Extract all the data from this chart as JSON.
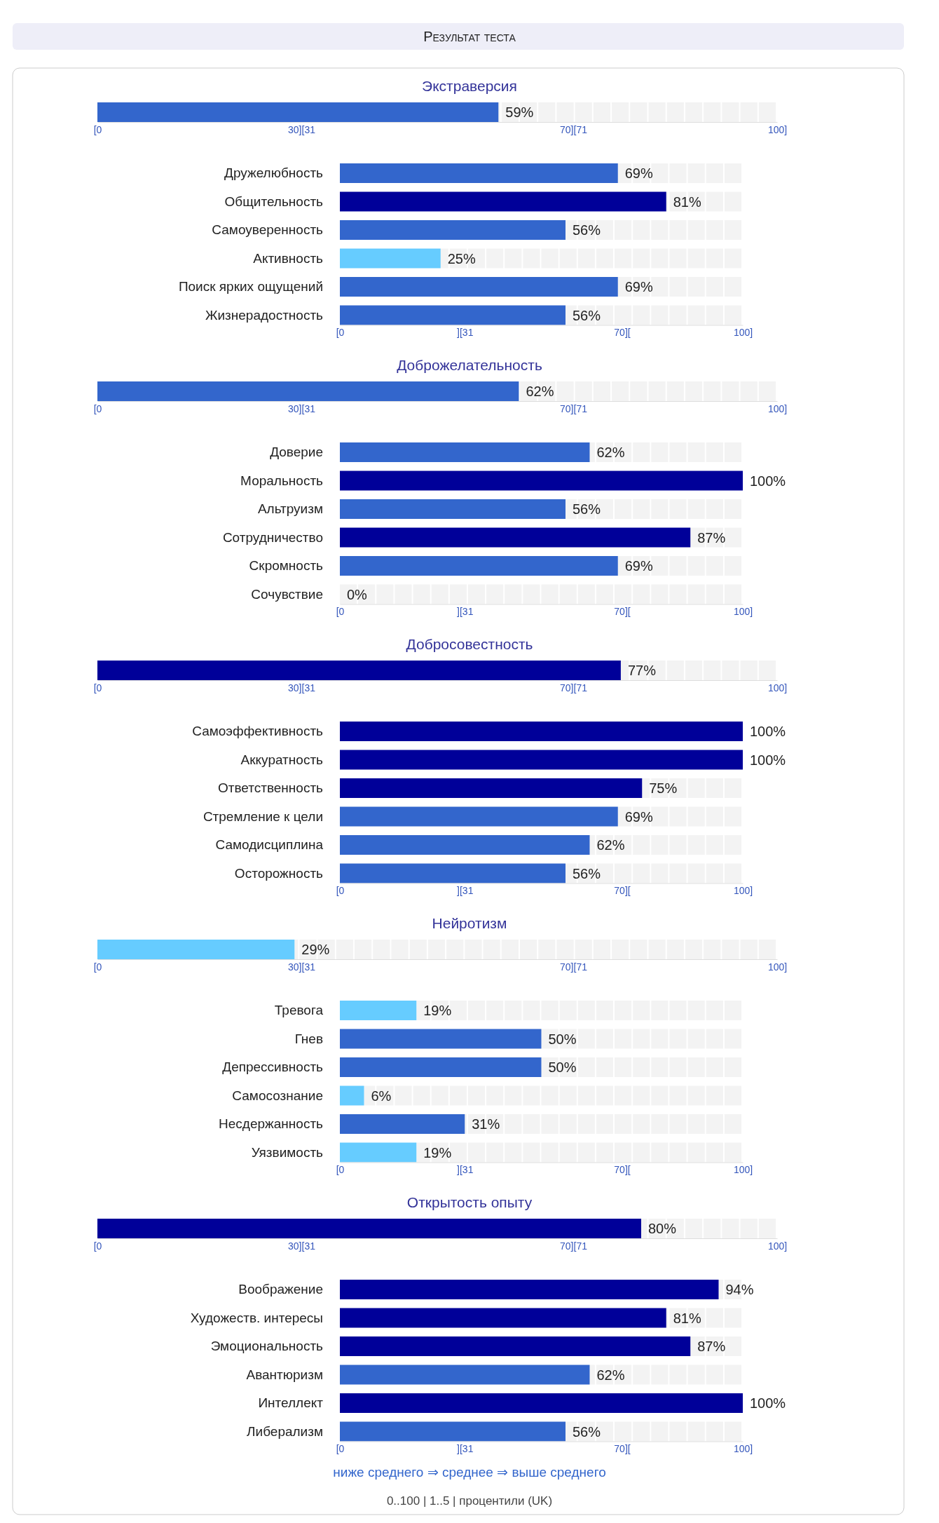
{
  "chart_data": [
    {
      "type": "other",
      "title": "Результат теста"
    },
    {
      "type": "bar",
      "orientation": "horizontal",
      "categories": [
        "Экстраверсия"
      ],
      "values": [
        59
      ],
      "colors": [
        "#3366cc"
      ],
      "value_labels": [
        "59%"
      ],
      "xlim": [
        0,
        100
      ],
      "xticks": [
        {
          "value": 0,
          "label": "[0"
        },
        {
          "value": 30,
          "label": "30][31"
        },
        {
          "value": 70,
          "label": "70][71"
        },
        {
          "value": 100,
          "label": "100]"
        }
      ]
    },
    {
      "type": "bar",
      "orientation": "horizontal",
      "categories": [
        "Дружелюбность",
        "Общительность",
        "Самоуверенность",
        "Активность",
        "Поиск ярких ощущений",
        "Жизнерадостность"
      ],
      "values": [
        69,
        81,
        56,
        25,
        69,
        56
      ],
      "colors": [
        "#3366cc",
        "#000099",
        "#3366cc",
        "#66ccff",
        "#3366cc",
        "#3366cc"
      ],
      "value_labels": [
        "69%",
        "81%",
        "56%",
        "25%",
        "69%",
        "56%"
      ],
      "xlim": [
        0,
        100
      ],
      "xticks": [
        {
          "value": 0,
          "label": "[0"
        },
        {
          "value": 31,
          "label": "][31"
        },
        {
          "value": 70,
          "label": "70]["
        },
        {
          "value": 100,
          "label": "100]"
        }
      ]
    },
    {
      "type": "bar",
      "orientation": "horizontal",
      "categories": [
        "Доброжелательность"
      ],
      "values": [
        62
      ],
      "colors": [
        "#3366cc"
      ],
      "value_labels": [
        "62%"
      ],
      "xlim": [
        0,
        100
      ],
      "xticks": [
        {
          "value": 0,
          "label": "[0"
        },
        {
          "value": 30,
          "label": "30][31"
        },
        {
          "value": 70,
          "label": "70][71"
        },
        {
          "value": 100,
          "label": "100]"
        }
      ]
    },
    {
      "type": "bar",
      "orientation": "horizontal",
      "categories": [
        "Доверие",
        "Моральность",
        "Альтруизм",
        "Сотрудничество",
        "Скромность",
        "Сочувствие"
      ],
      "values": [
        62,
        100,
        56,
        87,
        69,
        0
      ],
      "colors": [
        "#3366cc",
        "#000099",
        "#3366cc",
        "#000099",
        "#3366cc",
        "#66ccff"
      ],
      "value_labels": [
        "62%",
        "100%",
        "56%",
        "87%",
        "69%",
        "0%"
      ],
      "xlim": [
        0,
        100
      ],
      "xticks": [
        {
          "value": 0,
          "label": "[0"
        },
        {
          "value": 31,
          "label": "][31"
        },
        {
          "value": 70,
          "label": "70]["
        },
        {
          "value": 100,
          "label": "100]"
        }
      ]
    },
    {
      "type": "bar",
      "orientation": "horizontal",
      "categories": [
        "Добросовестность"
      ],
      "values": [
        77
      ],
      "colors": [
        "#000099"
      ],
      "value_labels": [
        "77%"
      ],
      "xlim": [
        0,
        100
      ],
      "xticks": [
        {
          "value": 0,
          "label": "[0"
        },
        {
          "value": 30,
          "label": "30][31"
        },
        {
          "value": 70,
          "label": "70][71"
        },
        {
          "value": 100,
          "label": "100]"
        }
      ]
    },
    {
      "type": "bar",
      "orientation": "horizontal",
      "categories": [
        "Самоэффективность",
        "Аккуратность",
        "Ответственность",
        "Стремление к цели",
        "Самодисциплина",
        "Осторожность"
      ],
      "values": [
        100,
        100,
        75,
        69,
        62,
        56
      ],
      "colors": [
        "#000099",
        "#000099",
        "#000099",
        "#3366cc",
        "#3366cc",
        "#3366cc"
      ],
      "value_labels": [
        "100%",
        "100%",
        "75%",
        "69%",
        "62%",
        "56%"
      ],
      "xlim": [
        0,
        100
      ],
      "xticks": [
        {
          "value": 0,
          "label": "[0"
        },
        {
          "value": 31,
          "label": "][31"
        },
        {
          "value": 70,
          "label": "70]["
        },
        {
          "value": 100,
          "label": "100]"
        }
      ]
    },
    {
      "type": "bar",
      "orientation": "horizontal",
      "categories": [
        "Нейротизм"
      ],
      "values": [
        29
      ],
      "colors": [
        "#66ccff"
      ],
      "value_labels": [
        "29%"
      ],
      "xlim": [
        0,
        100
      ],
      "xticks": [
        {
          "value": 0,
          "label": "[0"
        },
        {
          "value": 30,
          "label": "30][31"
        },
        {
          "value": 70,
          "label": "70][71"
        },
        {
          "value": 100,
          "label": "100]"
        }
      ]
    },
    {
      "type": "bar",
      "orientation": "horizontal",
      "categories": [
        "Тревога",
        "Гнев",
        "Депрессивность",
        "Самосознание",
        "Несдержанность",
        "Уязвимость"
      ],
      "values": [
        19,
        50,
        50,
        6,
        31,
        19
      ],
      "colors": [
        "#66ccff",
        "#3366cc",
        "#3366cc",
        "#66ccff",
        "#3366cc",
        "#66ccff"
      ],
      "value_labels": [
        "19%",
        "50%",
        "50%",
        "6%",
        "31%",
        "19%"
      ],
      "xlim": [
        0,
        100
      ],
      "xticks": [
        {
          "value": 0,
          "label": "[0"
        },
        {
          "value": 31,
          "label": "][31"
        },
        {
          "value": 70,
          "label": "70]["
        },
        {
          "value": 100,
          "label": "100]"
        }
      ]
    },
    {
      "type": "bar",
      "orientation": "horizontal",
      "categories": [
        "Открытость опыту"
      ],
      "values": [
        80
      ],
      "colors": [
        "#000099"
      ],
      "value_labels": [
        "80%"
      ],
      "xlim": [
        0,
        100
      ],
      "xticks": [
        {
          "value": 0,
          "label": "[0"
        },
        {
          "value": 30,
          "label": "30][31"
        },
        {
          "value": 70,
          "label": "70][71"
        },
        {
          "value": 100,
          "label": "100]"
        }
      ]
    },
    {
      "type": "bar",
      "orientation": "horizontal",
      "categories": [
        "Воображение",
        "Художеств. интересы",
        "Эмоциональность",
        "Авантюризм",
        "Интеллект",
        "Либерализм"
      ],
      "values": [
        94,
        81,
        87,
        62,
        100,
        56
      ],
      "colors": [
        "#000099",
        "#000099",
        "#000099",
        "#3366cc",
        "#000099",
        "#3366cc"
      ],
      "value_labels": [
        "94%",
        "81%",
        "87%",
        "62%",
        "100%",
        "56%"
      ],
      "xlim": [
        0,
        100
      ],
      "xticks": [
        {
          "value": 0,
          "label": "[0"
        },
        {
          "value": 31,
          "label": "][31"
        },
        {
          "value": 70,
          "label": "70]["
        },
        {
          "value": 100,
          "label": "100]"
        }
      ],
      "annotations": [
        "ниже среднего ⇒ среднее ⇒ выше среднего",
        "0..100 | 1..5 | процентили (UK)"
      ]
    }
  ]
}
